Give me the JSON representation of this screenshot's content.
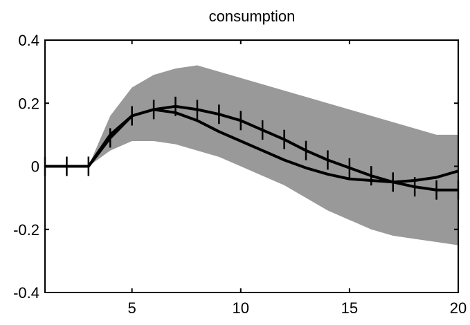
{
  "chart_data": {
    "type": "line",
    "title": "consumption",
    "xlabel": "",
    "ylabel": "",
    "xlim": [
      1,
      20
    ],
    "ylim": [
      -0.4,
      0.4
    ],
    "xticks": [
      5,
      10,
      15,
      20
    ],
    "yticks": [
      0.4,
      0.2,
      0,
      -0.2,
      -0.4
    ],
    "xtick_labels": [
      "5",
      "10",
      "15",
      "20"
    ],
    "ytick_labels": [
      "0.4",
      "0.2",
      "0",
      "-0.2",
      "-0.4"
    ],
    "grid": false,
    "band": {
      "x": [
        3,
        4,
        5,
        6,
        7,
        8,
        9,
        10,
        11,
        12,
        13,
        14,
        15,
        16,
        17,
        18,
        19,
        20
      ],
      "upper": [
        0.0,
        0.16,
        0.25,
        0.29,
        0.31,
        0.32,
        0.3,
        0.28,
        0.26,
        0.24,
        0.22,
        0.2,
        0.18,
        0.16,
        0.14,
        0.12,
        0.1,
        0.1
      ],
      "lower": [
        0.0,
        0.05,
        0.08,
        0.08,
        0.07,
        0.05,
        0.03,
        0.0,
        -0.03,
        -0.06,
        -0.1,
        -0.14,
        -0.17,
        -0.2,
        -0.22,
        -0.23,
        -0.24,
        -0.25
      ]
    },
    "series": [
      {
        "style": "solid",
        "x": [
          1,
          2,
          3,
          4,
          5,
          6,
          7,
          8,
          9,
          10,
          11,
          12,
          13,
          14,
          15,
          16,
          17,
          18,
          19,
          20
        ],
        "values": [
          0.0,
          0.0,
          0.0,
          0.1,
          0.16,
          0.18,
          0.17,
          0.145,
          0.11,
          0.08,
          0.05,
          0.02,
          -0.005,
          -0.025,
          -0.04,
          -0.045,
          -0.05,
          -0.045,
          -0.035,
          -0.015
        ]
      },
      {
        "style": "solid-with-plus-markers",
        "x": [
          1,
          2,
          3,
          4,
          5,
          6,
          7,
          8,
          9,
          10,
          11,
          12,
          13,
          14,
          15,
          16,
          17,
          18,
          19,
          20
        ],
        "values": [
          0.0,
          0.0,
          0.0,
          0.09,
          0.16,
          0.18,
          0.19,
          0.18,
          0.165,
          0.145,
          0.115,
          0.085,
          0.05,
          0.02,
          -0.005,
          -0.03,
          -0.05,
          -0.065,
          -0.075,
          -0.075
        ]
      }
    ]
  }
}
